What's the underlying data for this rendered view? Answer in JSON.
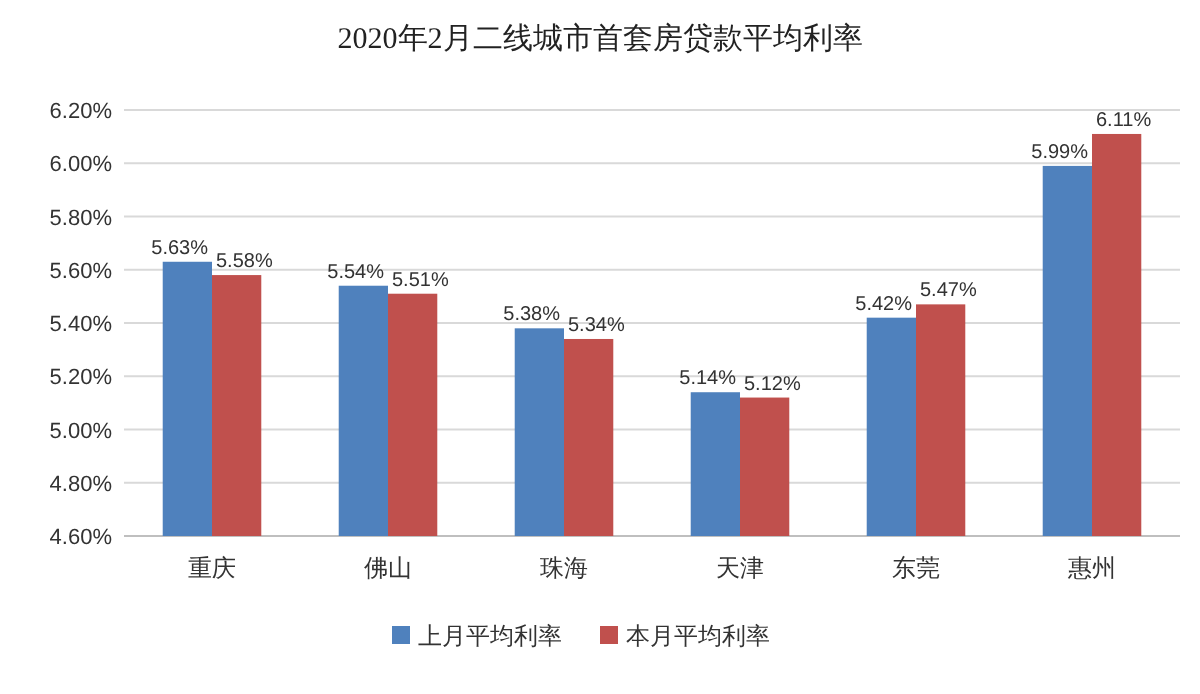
{
  "chart_data": {
    "type": "bar",
    "title": "2020年2月二线城市首套房贷款平均利率",
    "categories": [
      "重庆",
      "佛山",
      "珠海",
      "天津",
      "东莞",
      "惠州"
    ],
    "series": [
      {
        "name": "上月平均利率",
        "color": "#4f81bd",
        "values": [
          5.63,
          5.54,
          5.38,
          5.14,
          5.42,
          5.99
        ],
        "value_labels": [
          "5.63%",
          "5.54%",
          "5.38%",
          "5.14%",
          "5.42%",
          "5.99%"
        ]
      },
      {
        "name": "本月平均利率",
        "color": "#c0504d",
        "values": [
          5.58,
          5.51,
          5.34,
          5.12,
          5.47,
          6.11
        ],
        "value_labels": [
          "5.58%",
          "5.51%",
          "5.34%",
          "5.12%",
          "5.47%",
          "6.11%"
        ]
      }
    ],
    "ylim": [
      4.6,
      6.2
    ],
    "yticks": [
      {
        "value": 4.6,
        "label": "4.60%"
      },
      {
        "value": 4.8,
        "label": "4.80%"
      },
      {
        "value": 5.0,
        "label": "5.00%"
      },
      {
        "value": 5.2,
        "label": "5.20%"
      },
      {
        "value": 5.4,
        "label": "5.40%"
      },
      {
        "value": 5.6,
        "label": "5.60%"
      },
      {
        "value": 5.8,
        "label": "5.80%"
      },
      {
        "value": 6.0,
        "label": "6.00%"
      },
      {
        "value": 6.2,
        "label": "6.20%"
      }
    ],
    "grid": "y",
    "legend": "bottom"
  }
}
